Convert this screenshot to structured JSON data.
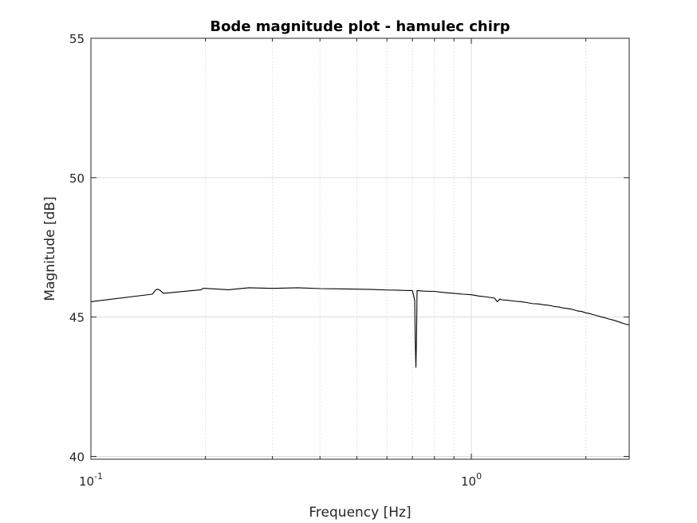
{
  "chart_data": {
    "type": "line",
    "title": "Bode magnitude plot - hamulec chirp",
    "xlabel": "Frequency [Hz]",
    "ylabel": "Magnitude [dB]",
    "x_scale": "log",
    "xlim": [
      0.1,
      2.6
    ],
    "ylim": [
      39.9,
      55
    ],
    "grid": true,
    "x_ticks": [
      {
        "value": 0.1,
        "base": "10",
        "exponent": "-1"
      },
      {
        "value": 1,
        "base": "10",
        "exponent": "0"
      }
    ],
    "y_ticks": [
      {
        "value": 40,
        "label": "40"
      },
      {
        "value": 45,
        "label": "45"
      },
      {
        "value": 50,
        "label": "50"
      },
      {
        "value": 55,
        "label": "55"
      }
    ],
    "line_color": "#000000",
    "series": [
      {
        "x": [
          0.1,
          0.145,
          0.148,
          0.15,
          0.152,
          0.155,
          0.195,
          0.197,
          0.2,
          0.23,
          0.26,
          0.3,
          0.35,
          0.4,
          0.45,
          0.5,
          0.55,
          0.6,
          0.65,
          0.68,
          0.7,
          0.71,
          0.712,
          0.715,
          0.718,
          0.72,
          0.75,
          0.8,
          0.85,
          0.9,
          0.95,
          1.0,
          1.05,
          1.1,
          1.15,
          1.17,
          1.19,
          1.2,
          1.25,
          1.3,
          1.35,
          1.4,
          1.45,
          1.5,
          1.55,
          1.6,
          1.65,
          1.7,
          1.75,
          1.8,
          1.85,
          1.9,
          1.95,
          2.0,
          2.05,
          2.1,
          2.15,
          2.2,
          2.25,
          2.3,
          2.35,
          2.4,
          2.45,
          2.5,
          2.55,
          2.6
        ],
        "y": [
          45.55,
          45.82,
          45.97,
          46.0,
          45.96,
          45.85,
          45.98,
          46.03,
          46.03,
          45.98,
          46.05,
          46.03,
          46.05,
          46.02,
          46.01,
          46.0,
          45.99,
          45.97,
          45.96,
          45.95,
          45.95,
          45.6,
          44.2,
          43.2,
          44.5,
          45.95,
          45.93,
          45.92,
          45.88,
          45.85,
          45.82,
          45.8,
          45.75,
          45.72,
          45.68,
          45.55,
          45.65,
          45.62,
          45.6,
          45.57,
          45.55,
          45.52,
          45.48,
          45.47,
          45.44,
          45.42,
          45.38,
          45.36,
          45.32,
          45.3,
          45.27,
          45.22,
          45.2,
          45.15,
          45.12,
          45.08,
          45.04,
          45.0,
          44.97,
          44.93,
          44.9,
          44.86,
          44.82,
          44.78,
          44.74,
          44.72
        ]
      }
    ]
  }
}
